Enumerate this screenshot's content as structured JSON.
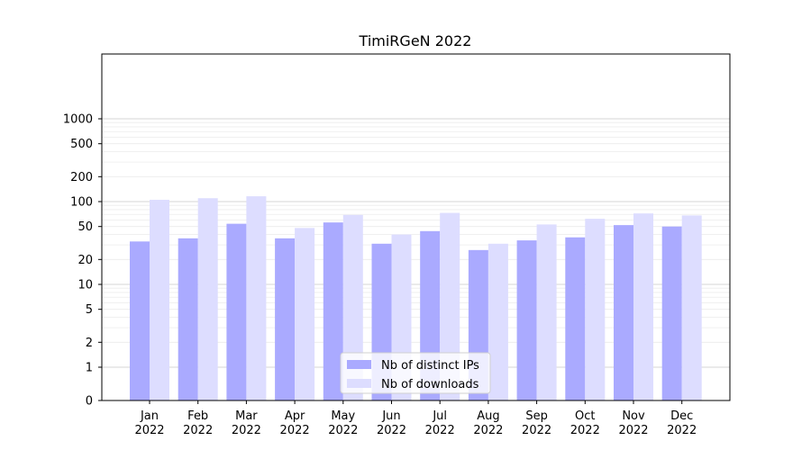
{
  "chart_data": {
    "type": "bar",
    "title": "TimiRGeN 2022",
    "xlabel": "",
    "ylabel": "",
    "y_scale": "symlog",
    "ylim": [
      0,
      1300
    ],
    "grid": "y",
    "legend_position": "bottom-center",
    "categories": [
      {
        "month": "Jan",
        "year": "2022"
      },
      {
        "month": "Feb",
        "year": "2022"
      },
      {
        "month": "Mar",
        "year": "2022"
      },
      {
        "month": "Apr",
        "year": "2022"
      },
      {
        "month": "May",
        "year": "2022"
      },
      {
        "month": "Jun",
        "year": "2022"
      },
      {
        "month": "Jul",
        "year": "2022"
      },
      {
        "month": "Aug",
        "year": "2022"
      },
      {
        "month": "Sep",
        "year": "2022"
      },
      {
        "month": "Oct",
        "year": "2022"
      },
      {
        "month": "Nov",
        "year": "2022"
      },
      {
        "month": "Dec",
        "year": "2022"
      }
    ],
    "y_ticks": [
      {
        "value": 0,
        "label": "0"
      },
      {
        "value": 1,
        "label": "1"
      },
      {
        "value": 2,
        "label": "2"
      },
      {
        "value": 5,
        "label": "5"
      },
      {
        "value": 10,
        "label": "10"
      },
      {
        "value": 20,
        "label": "20"
      },
      {
        "value": 50,
        "label": "50"
      },
      {
        "value": 100,
        "label": "100"
      },
      {
        "value": 200,
        "label": "200"
      },
      {
        "value": 500,
        "label": "500"
      },
      {
        "value": 1000,
        "label": "1000"
      }
    ],
    "series": [
      {
        "name": "Nb of distinct IPs",
        "color": "#aaaaff",
        "values": [
          33,
          36,
          54,
          36,
          56,
          31,
          44,
          26,
          34,
          37,
          52,
          50
        ]
      },
      {
        "name": "Nb of downloads",
        "color": "#ddddff",
        "values": [
          105,
          110,
          116,
          48,
          69,
          40,
          73,
          31,
          53,
          62,
          72,
          68
        ]
      }
    ]
  }
}
